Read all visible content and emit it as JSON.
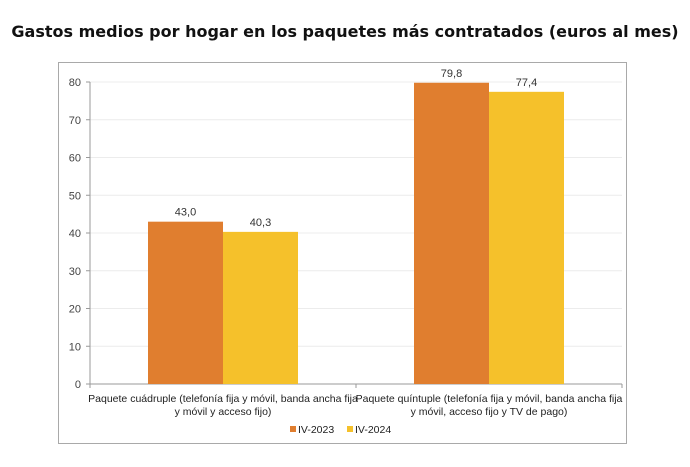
{
  "chart_data": {
    "type": "bar",
    "title": "Gastos medios por hogar en los paquetes más contratados (euros al mes)",
    "categories": [
      [
        "Paquete cuádruple (telefonía fija y móvil, banda ancha fija",
        "y móvil y acceso fijo)"
      ],
      [
        "Paquete quíntuple (telefonía fija y móvil, banda ancha fija",
        "y móvil, acceso fijo y TV de pago)"
      ]
    ],
    "series": [
      {
        "name": "IV-2023",
        "values": [
          43.0,
          79.8
        ],
        "labels": [
          "43,0",
          "79,8"
        ],
        "color": "#E07E2F"
      },
      {
        "name": "IV-2024",
        "values": [
          40.3,
          77.4
        ],
        "labels": [
          "40,3",
          "77,4"
        ],
        "color": "#F5C12B"
      }
    ],
    "ylim": [
      0,
      80
    ],
    "yticks": [
      0,
      10,
      20,
      30,
      40,
      50,
      60,
      70,
      80
    ],
    "grid": true,
    "legend": "bottom",
    "xlabel": "",
    "ylabel": ""
  }
}
